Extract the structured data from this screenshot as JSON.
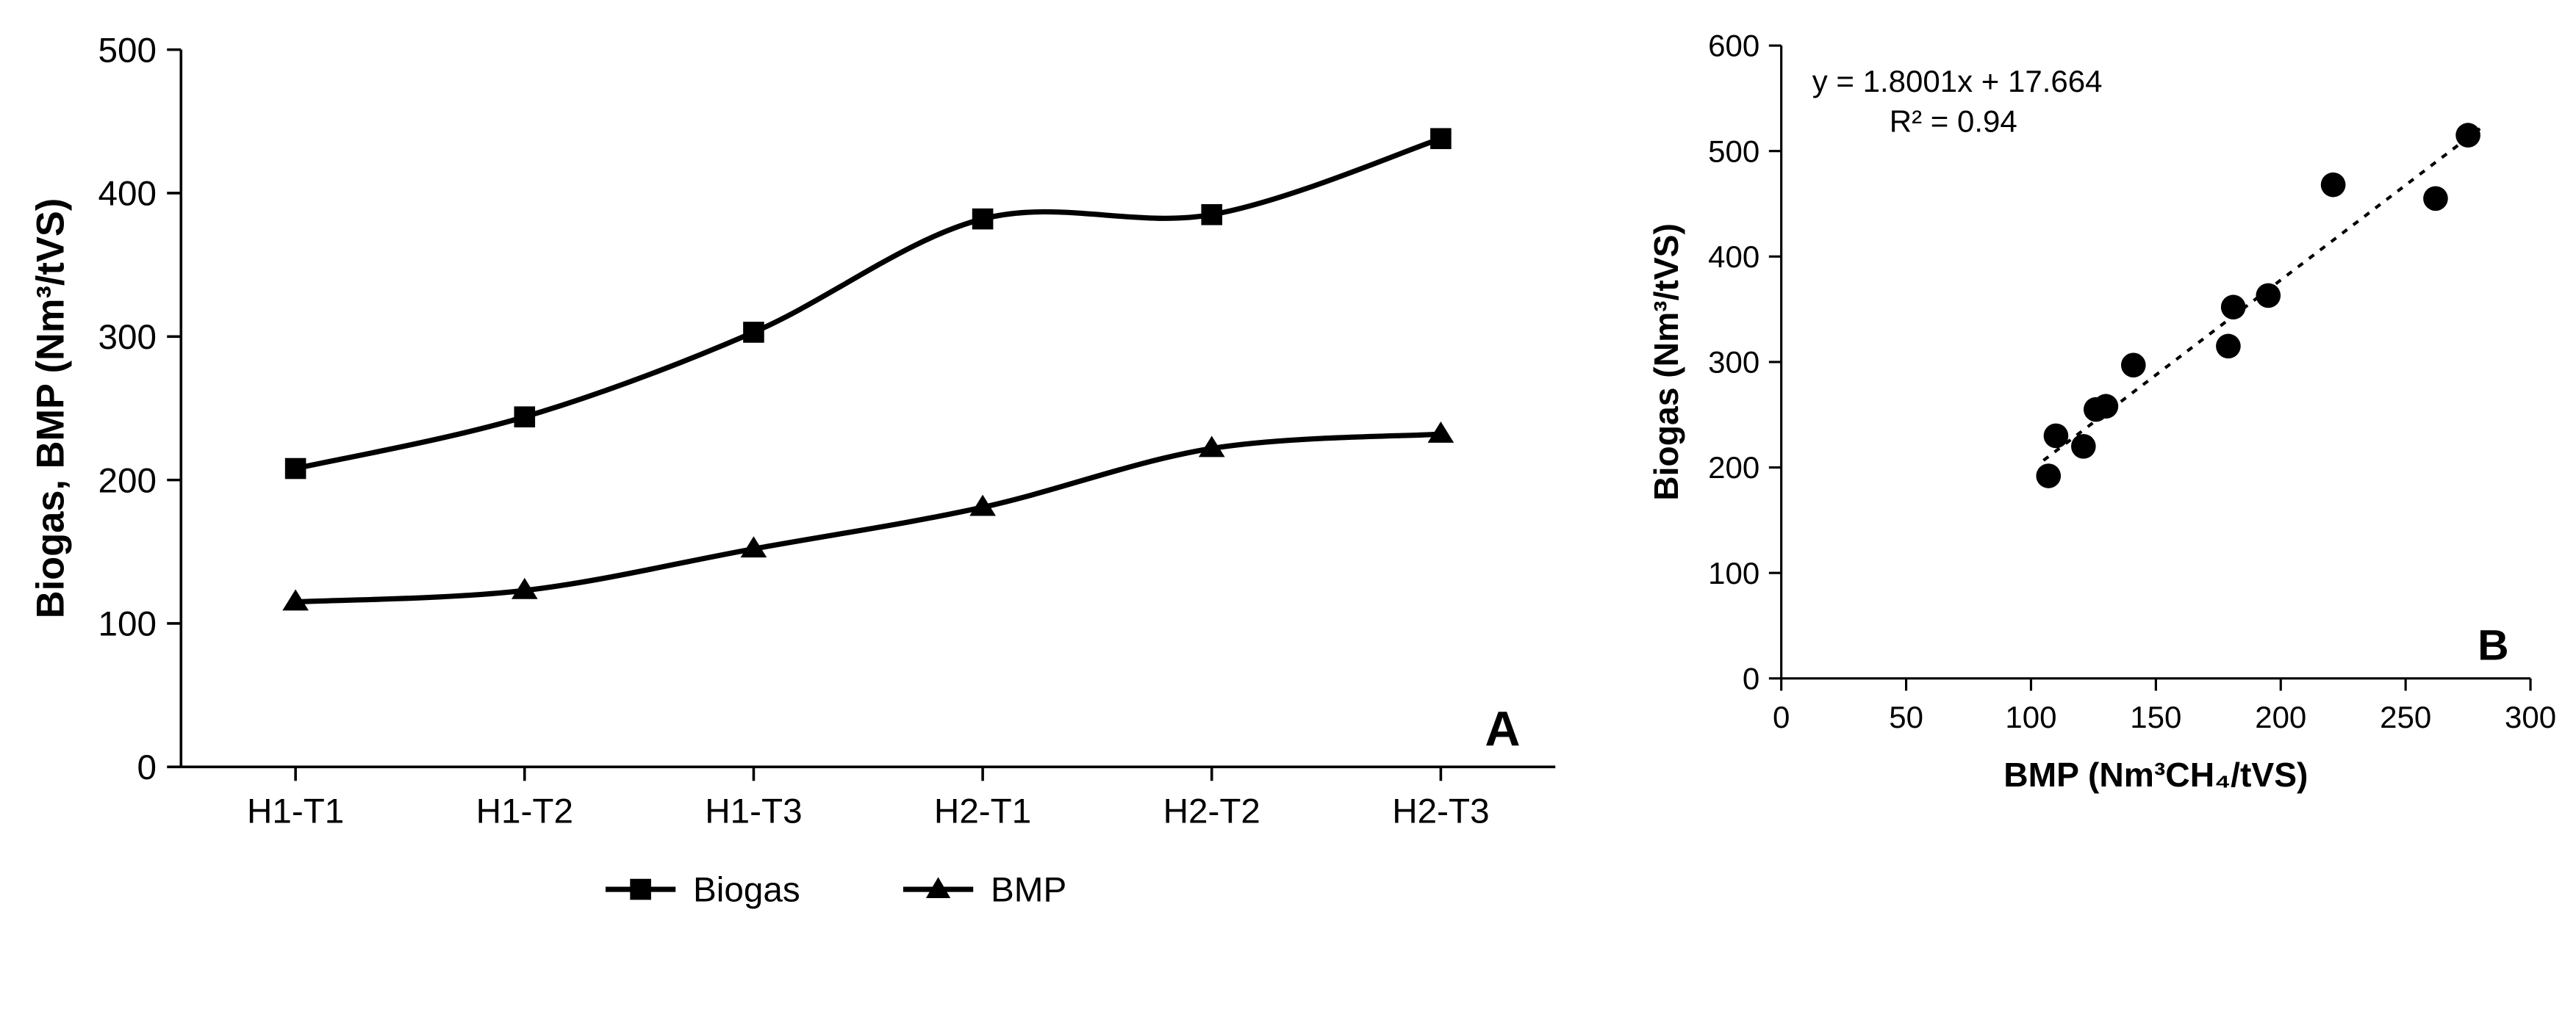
{
  "panelA": {
    "type": "line",
    "letter": "A",
    "y_label": "Biogas, BMP (Nm³/tVS)",
    "categories": [
      "H1-T1",
      "H1-T2",
      "H1-T3",
      "H2-T1",
      "H2-T2",
      "H2-T3"
    ],
    "ylim": [
      0,
      500
    ],
    "ytick_step": 100,
    "series": [
      {
        "name": "Biogas",
        "marker": "square",
        "values": [
          208,
          244,
          303,
          382,
          385,
          438
        ],
        "line_width": 3,
        "marker_size": 12,
        "color": "#000000"
      },
      {
        "name": "BMP",
        "marker": "triangle",
        "values": [
          115,
          123,
          152,
          181,
          222,
          232
        ],
        "line_width": 3,
        "marker_size": 12,
        "color": "#000000"
      }
    ],
    "legend": {
      "position": "bottom",
      "items": [
        "Biogas",
        "BMP"
      ]
    },
    "tick_fontsize": 20,
    "label_fontsize": 22,
    "background_color": "#ffffff"
  },
  "panelB": {
    "type": "scatter",
    "letter": "B",
    "x_label": "BMP (Nm³CH₄/tVS)",
    "y_label": "Biogas (Nm³/tVS)",
    "xlim": [
      0,
      300
    ],
    "xtick_step": 50,
    "ylim": [
      0,
      600
    ],
    "ytick_step": 100,
    "points": [
      {
        "x": 107,
        "y": 192
      },
      {
        "x": 110,
        "y": 230
      },
      {
        "x": 121,
        "y": 220
      },
      {
        "x": 126,
        "y": 255
      },
      {
        "x": 130,
        "y": 258
      },
      {
        "x": 141,
        "y": 297
      },
      {
        "x": 179,
        "y": 315
      },
      {
        "x": 181,
        "y": 352
      },
      {
        "x": 195,
        "y": 363
      },
      {
        "x": 221,
        "y": 468
      },
      {
        "x": 262,
        "y": 455
      },
      {
        "x": 275,
        "y": 515
      }
    ],
    "marker_color": "#000000",
    "marker_size": 8,
    "trendline": {
      "slope": 1.8001,
      "intercept": 17.664,
      "r2": 0.94,
      "x_start": 105,
      "x_end": 280,
      "equation": "y = 1.8001x + 17.664",
      "r2_text": "R² = 0.94"
    },
    "tick_fontsize": 20,
    "label_fontsize": 22,
    "background_color": "#ffffff"
  }
}
